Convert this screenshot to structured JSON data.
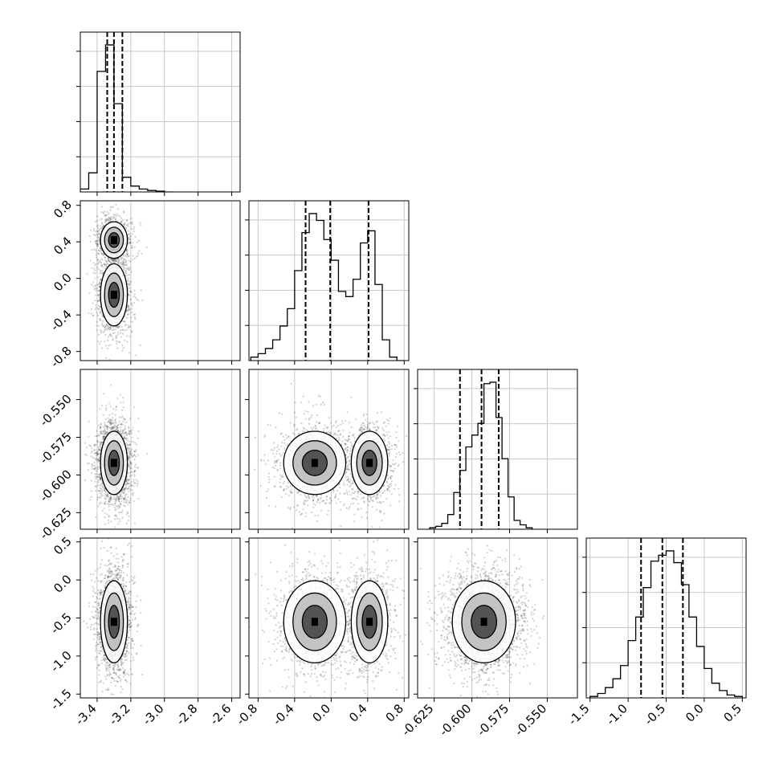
{
  "chart_data": {
    "type": "corner",
    "dimension_count": 4,
    "style": {
      "grid": true,
      "line_color": "#000000",
      "density_color": "#000000",
      "quantile_line": "dashed"
    },
    "variables": [
      {
        "range": [
          -3.5,
          -2.55
        ],
        "ticks": [
          "-3.4",
          "-3.2",
          "-3.0",
          "-2.8",
          "-2.6"
        ],
        "tick_values": [
          -3.4,
          -3.2,
          -3.0,
          -2.8,
          -2.6
        ],
        "quantiles": [
          -3.34,
          -3.3,
          -3.25
        ],
        "hist_edges": [
          -3.5,
          -3.45,
          -3.4,
          -3.35,
          -3.3,
          -3.25,
          -3.2,
          -3.15,
          -3.1,
          -3.05,
          -3.0,
          -2.95
        ],
        "hist_counts": [
          0.02,
          0.13,
          0.82,
          1.0,
          0.6,
          0.1,
          0.04,
          0.02,
          0.01,
          0.005,
          0.0
        ],
        "modes": [
          {
            "mean": -3.3,
            "sd": 0.04,
            "weight": 1.0
          }
        ]
      },
      {
        "range": [
          -0.9,
          0.85
        ],
        "ticks": [
          "-0.8",
          "-0.4",
          "0.0",
          "0.4",
          "0.8"
        ],
        "tick_values": [
          -0.8,
          -0.4,
          0.0,
          0.4,
          0.8
        ],
        "quantiles": [
          -0.28,
          -0.01,
          0.41
        ],
        "hist_edges": [
          -0.88,
          -0.8,
          -0.72,
          -0.64,
          -0.56,
          -0.48,
          -0.4,
          -0.32,
          -0.24,
          -0.16,
          -0.08,
          0.0,
          0.08,
          0.16,
          0.24,
          0.32,
          0.4,
          0.48,
          0.56,
          0.64,
          0.72,
          0.8
        ],
        "hist_counts": [
          0.02,
          0.04,
          0.07,
          0.12,
          0.2,
          0.3,
          0.52,
          0.74,
          0.85,
          0.81,
          0.7,
          0.58,
          0.4,
          0.37,
          0.47,
          0.68,
          0.75,
          0.44,
          0.12,
          0.02,
          0.0
        ],
        "modes": [
          {
            "mean": -0.18,
            "sd": 0.17,
            "weight": 0.55
          },
          {
            "mean": 0.42,
            "sd": 0.1,
            "weight": 0.45
          }
        ]
      },
      {
        "range": [
          -0.636,
          -0.53
        ],
        "ticks": [
          "-0.625",
          "-0.600",
          "-0.575",
          "-0.550"
        ],
        "tick_values": [
          -0.625,
          -0.6,
          -0.575,
          -0.55
        ],
        "quantiles": [
          -0.6079,
          -0.5936,
          -0.5822
        ],
        "hist_edges": [
          -0.628,
          -0.624,
          -0.62,
          -0.616,
          -0.612,
          -0.608,
          -0.604,
          -0.6,
          -0.596,
          -0.592,
          -0.588,
          -0.584,
          -0.58,
          -0.576,
          -0.572,
          -0.568,
          -0.564,
          -0.56
        ],
        "hist_counts": [
          0.01,
          0.02,
          0.04,
          0.1,
          0.25,
          0.4,
          0.56,
          0.64,
          0.72,
          0.99,
          1.0,
          0.76,
          0.48,
          0.22,
          0.06,
          0.03,
          0.01
        ],
        "modes": [
          {
            "mean": -0.592,
            "sd": 0.0105,
            "weight": 1.0
          }
        ]
      },
      {
        "range": [
          -1.55,
          0.55
        ],
        "ticks": [
          "-1.5",
          "-1.0",
          "-0.5",
          "0.0",
          "0.5"
        ],
        "tick_values": [
          -1.5,
          -1.0,
          -0.5,
          0.0,
          0.5
        ],
        "quantiles": [
          -0.83,
          -0.55,
          -0.28
        ],
        "hist_edges": [
          -1.5,
          -1.4,
          -1.3,
          -1.2,
          -1.1,
          -1.0,
          -0.9,
          -0.8,
          -0.7,
          -0.6,
          -0.5,
          -0.4,
          -0.3,
          -0.2,
          -0.1,
          0.0,
          0.1,
          0.2,
          0.3,
          0.4,
          0.5
        ],
        "hist_counts": [
          0.01,
          0.03,
          0.07,
          0.13,
          0.22,
          0.39,
          0.55,
          0.75,
          0.93,
          0.97,
          1.0,
          0.92,
          0.77,
          0.55,
          0.35,
          0.2,
          0.1,
          0.05,
          0.02,
          0.01
        ],
        "modes": [
          {
            "mean": -0.55,
            "sd": 0.27,
            "weight": 1.0
          }
        ]
      }
    ],
    "pair_correlations": {
      "1_0": [
        0.0,
        0.35
      ],
      "2_0": [
        0.0,
        -0.6
      ],
      "2_1": [
        0.0,
        -0.6
      ],
      "3_0": [
        0.0,
        0.0
      ],
      "3_1": [
        0.0,
        0.0
      ],
      "3_2": [
        0.0,
        0.0
      ]
    }
  }
}
